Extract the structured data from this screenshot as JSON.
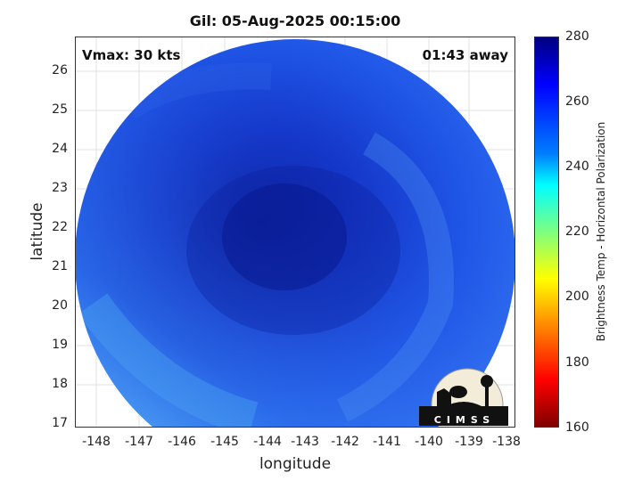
{
  "title": "Gil: 05-Aug-2025 00:15:00",
  "annotations": {
    "vmax": "Vmax: 30 kts",
    "time_away": "01:43 away"
  },
  "axes": {
    "xlabel": "longitude",
    "ylabel": "latitude",
    "xticks": [
      "-148",
      "-147",
      "-146",
      "-145",
      "-144",
      "-143",
      "-142",
      "-141",
      "-140",
      "-139",
      "-138"
    ],
    "yticks": [
      "26",
      "25",
      "24",
      "23",
      "22",
      "21",
      "20",
      "19",
      "18",
      "17"
    ]
  },
  "colorbar": {
    "label": "Brightness Temp - Horizontal Polarization",
    "ticks": [
      "280",
      "260",
      "240",
      "220",
      "200",
      "180",
      "160"
    ]
  },
  "logo_text": "CIMSS",
  "colors": {
    "swath_dark": "#0b1ea8",
    "swath_mid": "#1e4fe0",
    "swath_light": "#4aa0f0"
  }
}
